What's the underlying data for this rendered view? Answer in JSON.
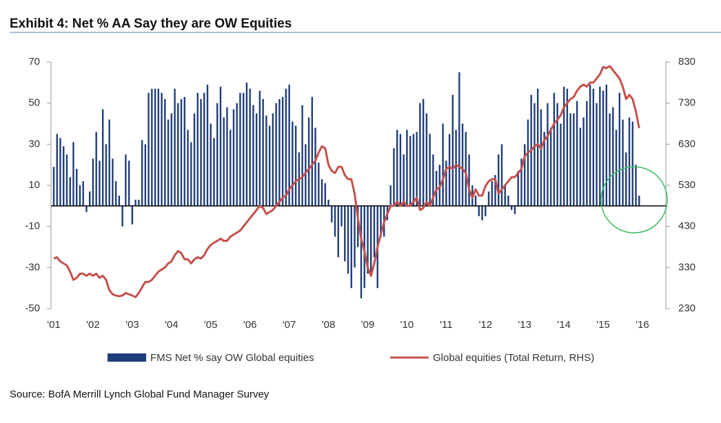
{
  "chart_data": {
    "type": "bar-line",
    "title": "Exhibit 4: Net % AA Say they are OW Equities",
    "source": "Source: BofA Merrill Lynch Global Fund Manager Survey",
    "categories": [
      "'01",
      null,
      null,
      null,
      null,
      null,
      null,
      null,
      null,
      null,
      null,
      null,
      "'02",
      null,
      null,
      null,
      null,
      null,
      null,
      null,
      null,
      null,
      null,
      null,
      "'03",
      null,
      null,
      null,
      null,
      null,
      null,
      null,
      null,
      null,
      null,
      null,
      "'04",
      null,
      null,
      null,
      null,
      null,
      null,
      null,
      null,
      null,
      null,
      null,
      "'05",
      null,
      null,
      null,
      null,
      null,
      null,
      null,
      null,
      null,
      null,
      null,
      "'06",
      null,
      null,
      null,
      null,
      null,
      null,
      null,
      null,
      null,
      null,
      null,
      "'07",
      null,
      null,
      null,
      null,
      null,
      null,
      null,
      null,
      null,
      null,
      null,
      "'08",
      null,
      null,
      null,
      null,
      null,
      null,
      null,
      null,
      null,
      null,
      null,
      "'09",
      null,
      null,
      null,
      null,
      null,
      null,
      null,
      null,
      null,
      null,
      null,
      "'10",
      null,
      null,
      null,
      null,
      null,
      null,
      null,
      null,
      null,
      null,
      null,
      "'11",
      null,
      null,
      null,
      null,
      null,
      null,
      null,
      null,
      null,
      null,
      null,
      "'12",
      null,
      null,
      null,
      null,
      null,
      null,
      null,
      null,
      null,
      null,
      null,
      "'13",
      null,
      null,
      null,
      null,
      null,
      null,
      null,
      null,
      null,
      null,
      null,
      "'14",
      null,
      null,
      null,
      null,
      null,
      null,
      null,
      null,
      null,
      null,
      null,
      "'15",
      null,
      null,
      null,
      null,
      null,
      null,
      null,
      null,
      null,
      null,
      null,
      "'16"
    ],
    "ylim": [
      -50,
      70
    ],
    "yticks": [
      -50,
      -30,
      -10,
      10,
      30,
      50,
      70
    ],
    "y2lim": [
      230,
      830
    ],
    "y2ticks": [
      230,
      330,
      430,
      530,
      630,
      730,
      830
    ],
    "series": [
      {
        "name": "FMS Net % say OW Global equities",
        "type": "bar",
        "color": "#1f3d7a",
        "values": [
          19,
          35,
          33,
          29,
          25,
          14,
          31,
          18,
          10,
          12,
          -3,
          7,
          23,
          36,
          22,
          47,
          30,
          42,
          23,
          12,
          5,
          -10,
          25,
          22,
          -9,
          3,
          3,
          32,
          30,
          55,
          57,
          57,
          57,
          55,
          52,
          42,
          45,
          57,
          50,
          52,
          53,
          37,
          31,
          45,
          55,
          52,
          55,
          59,
          40,
          33,
          50,
          58,
          43,
          48,
          37,
          47,
          50,
          55,
          55,
          60,
          57,
          49,
          45,
          56,
          52,
          44,
          39,
          45,
          50,
          52,
          53,
          57,
          59,
          41,
          39,
          26,
          49,
          30,
          43,
          53,
          38,
          21,
          13,
          11,
          3,
          -8,
          -15,
          -25,
          -10,
          -27,
          -33,
          -40,
          -30,
          -20,
          -45,
          -40,
          -33,
          -33,
          -25,
          -40,
          -15,
          -15,
          -7,
          10,
          28,
          37,
          35,
          25,
          37,
          34,
          35,
          36,
          50,
          52,
          45,
          35,
          25,
          17,
          20,
          40,
          22,
          35,
          54,
          37,
          65,
          40,
          36,
          25,
          10,
          5,
          -5,
          -7,
          -5,
          7,
          12,
          15,
          25,
          30,
          10,
          5,
          -2,
          -4,
          17,
          23,
          30,
          42,
          54,
          50,
          57,
          47,
          36,
          50,
          38,
          55,
          50,
          40,
          58,
          57,
          45,
          45,
          51,
          38,
          43,
          51,
          59,
          57,
          50,
          58,
          56,
          59,
          45,
          48,
          37,
          55,
          42,
          26,
          43,
          41,
          20,
          5,
          null
        ]
      },
      {
        "name": "Global equities (Total Return, RHS)",
        "type": "line",
        "axis": "y2",
        "color": "#c4504c",
        "values": [
          352,
          355,
          345,
          340,
          335,
          320,
          300,
          305,
          315,
          315,
          310,
          315,
          310,
          315,
          305,
          310,
          300,
          275,
          265,
          262,
          260,
          262,
          268,
          265,
          262,
          258,
          268,
          282,
          295,
          295,
          300,
          310,
          320,
          325,
          330,
          340,
          345,
          360,
          370,
          365,
          350,
          350,
          340,
          350,
          355,
          352,
          360,
          375,
          385,
          390,
          395,
          400,
          395,
          395,
          405,
          410,
          415,
          420,
          430,
          440,
          450,
          460,
          470,
          480,
          475,
          460,
          465,
          470,
          480,
          490,
          500,
          505,
          520,
          530,
          540,
          545,
          550,
          560,
          570,
          580,
          590,
          610,
          625,
          620,
          580,
          565,
          560,
          575,
          575,
          555,
          545,
          545,
          510,
          450,
          400,
          370,
          330,
          310,
          340,
          380,
          410,
          440,
          460,
          480,
          480,
          490,
          480,
          490,
          480,
          480,
          490,
          500,
          470,
          475,
          490,
          480,
          500,
          520,
          525,
          545,
          570,
          575,
          570,
          580,
          575,
          570,
          560,
          520,
          500,
          520,
          505,
          505,
          528,
          540,
          545,
          545,
          510,
          520,
          530,
          540,
          550,
          550,
          560,
          570,
          600,
          610,
          615,
          625,
          630,
          620,
          640,
          650,
          665,
          680,
          690,
          700,
          720,
          730,
          740,
          745,
          760,
          770,
          775,
          770,
          780,
          780,
          790,
          800,
          818,
          815,
          820,
          810,
          800,
          790,
          770,
          740,
          750,
          740,
          710,
          669,
          null
        ]
      }
    ]
  }
}
